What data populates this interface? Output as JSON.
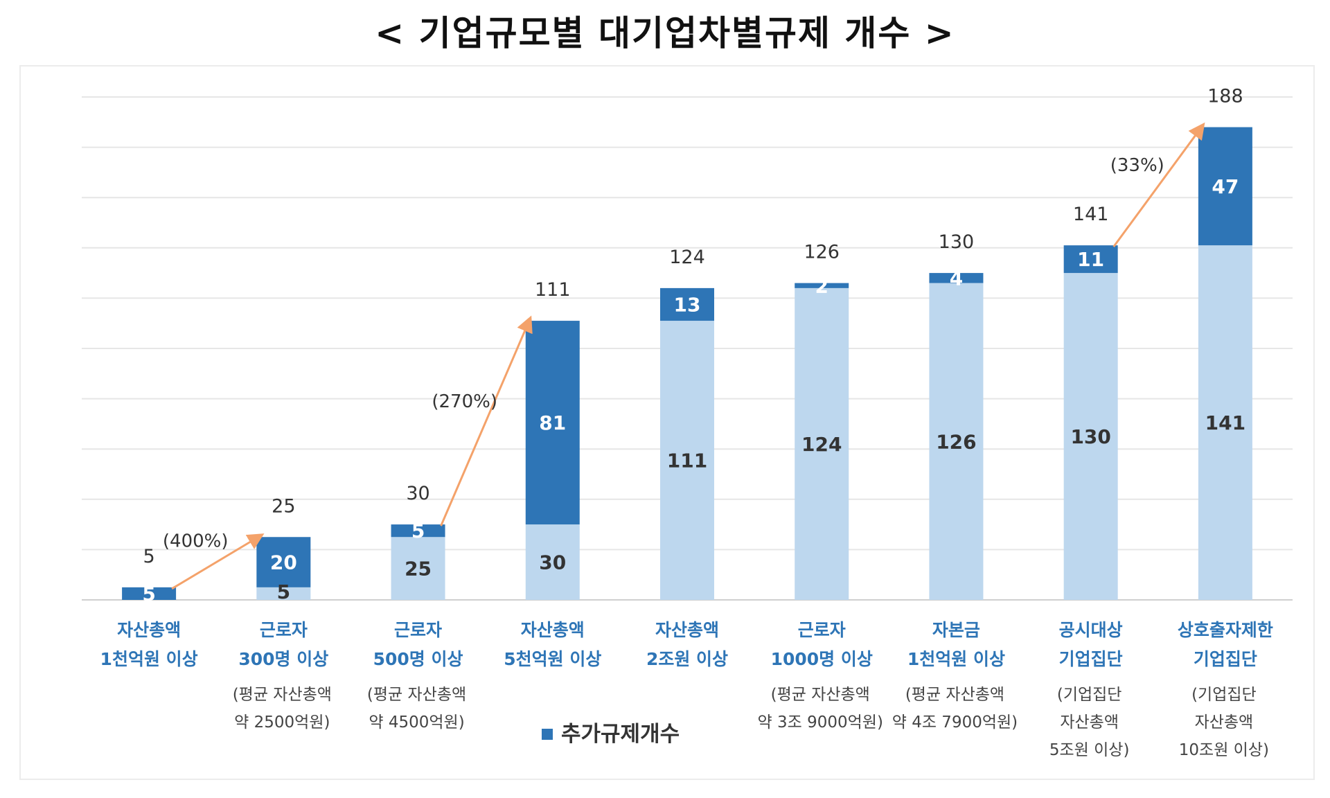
{
  "title": "< 기업규모별 대기업차별규제 개수 >",
  "legend": {
    "label": "추가규제개수"
  },
  "colors": {
    "base": "#bdd7ee",
    "added": "#2e75b6",
    "arrow": "#f4a26a",
    "grid": "#e6e6e6"
  },
  "chart_data": {
    "type": "bar",
    "stacked": true,
    "ylim": [
      0,
      200
    ],
    "grid": true,
    "legend_position": "bottom",
    "categories": [
      [
        "자산총액",
        "1천억원 이상"
      ],
      [
        "근로자",
        "300명 이상"
      ],
      [
        "근로자",
        "500명 이상"
      ],
      [
        "자산총액",
        "5천억원 이상"
      ],
      [
        "자산총액",
        "2조원 이상"
      ],
      [
        "근로자",
        "1000명 이상"
      ],
      [
        "자본금",
        "1천억원 이상"
      ],
      [
        "공시대상",
        "기업집단"
      ],
      [
        "상호출자제한",
        "기업집단"
      ]
    ],
    "notes": [
      [],
      [
        "(평균 자산총액",
        "약 2500억원)"
      ],
      [
        "(평균 자산총액",
        "약 4500억원)"
      ],
      [],
      [],
      [
        "(평균 자산총액",
        "약 3조 9000억원)"
      ],
      [
        "(평균 자산총액",
        "약 4조 7900억원)"
      ],
      [
        "(기업집단",
        "자산총액",
        "5조원 이상)"
      ],
      [
        "(기업집단",
        "자산총액",
        "10조원 이상)"
      ]
    ],
    "series": [
      {
        "values": [
          0,
          5,
          25,
          30,
          111,
          124,
          126,
          130,
          141
        ]
      },
      {
        "name": "추가규제개수",
        "values": [
          5,
          20,
          5,
          81,
          13,
          2,
          4,
          11,
          47
        ]
      }
    ],
    "segment_labels": [
      [
        "",
        "5",
        "25",
        "30",
        "111",
        "124",
        "126",
        "130",
        "141"
      ],
      [
        "5",
        "20",
        "5",
        "81",
        "13",
        "2",
        "4",
        "11",
        "47"
      ]
    ],
    "totals": [
      5,
      25,
      30,
      111,
      124,
      126,
      130,
      141,
      188
    ],
    "annotations": [
      {
        "from": 0,
        "to": 1,
        "text": "(400%)"
      },
      {
        "from": 2,
        "to": 3,
        "text": "(270%)"
      },
      {
        "from": 7,
        "to": 8,
        "text": "(33%)"
      }
    ]
  }
}
